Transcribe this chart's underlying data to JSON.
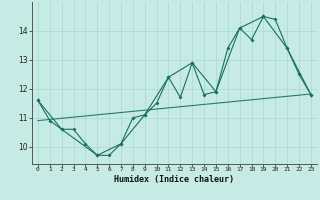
{
  "xlabel": "Humidex (Indice chaleur)",
  "bg_color": "#c5ebe4",
  "line_color": "#1a7060",
  "grid_color": "#a8d8d0",
  "xlim": [
    -0.5,
    23.5
  ],
  "ylim": [
    9.4,
    15.0
  ],
  "x_ticks": [
    0,
    1,
    2,
    3,
    4,
    5,
    6,
    7,
    8,
    9,
    10,
    11,
    12,
    13,
    14,
    15,
    16,
    17,
    18,
    19,
    20,
    21,
    22,
    23
  ],
  "y_ticks": [
    10,
    11,
    12,
    13,
    14
  ],
  "main_x": [
    0,
    1,
    2,
    3,
    4,
    5,
    6,
    7,
    8,
    9,
    10,
    11,
    12,
    13,
    14,
    15,
    16,
    17,
    18,
    19,
    20,
    21,
    22,
    23
  ],
  "main_y": [
    11.6,
    10.9,
    10.6,
    10.6,
    10.1,
    9.7,
    9.7,
    10.1,
    11.0,
    11.1,
    11.5,
    12.4,
    11.7,
    12.9,
    11.8,
    11.9,
    13.4,
    14.1,
    13.7,
    14.5,
    14.4,
    13.4,
    12.5,
    11.8
  ],
  "upper_x": [
    0,
    2,
    5,
    7,
    9,
    11,
    13,
    15,
    17,
    19,
    21,
    23
  ],
  "upper_y": [
    11.6,
    10.6,
    9.7,
    10.1,
    11.1,
    12.4,
    12.9,
    11.9,
    14.1,
    14.5,
    13.4,
    11.8
  ],
  "trend_x": [
    0,
    23
  ],
  "trend_y": [
    10.9,
    11.82
  ]
}
